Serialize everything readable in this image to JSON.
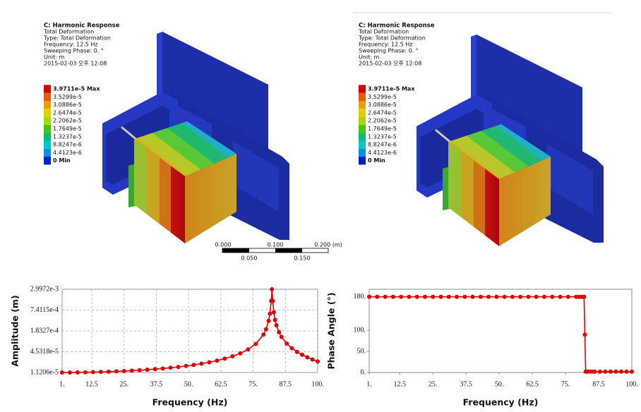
{
  "simulations": [
    {
      "title": "C: Harmonic Response",
      "lines": [
        "Total Deformation",
        "Type: Total Deformation",
        "Frequency: 12.5 Hz",
        "Sweeping Phase: 0. °",
        "Unit: m",
        "2015-02-03 오후 12:08"
      ],
      "legend": [
        "3.9711e-5 Max",
        "3.5299e-5",
        "3.0886e-5",
        "2.6474e-5",
        "2.2062e-5",
        "1.7649e-5",
        "1.3237e-5",
        "8.8247e-6",
        "4.4123e-6",
        "0 Min"
      ]
    },
    {
      "title": "C: Harmonic Response",
      "lines": [
        "Total Deformation",
        "Type: Total Deformation",
        "Frequency: 12.5 Hz",
        "Sweeping Phase: 0. °",
        "Unit: m",
        "2015-02-03 오후 12:08"
      ],
      "legend": [
        "3.9711e-5 Max",
        "3.5299e-5",
        "3.0886e-5",
        "2.6474e-5",
        "2.2062e-5",
        "1.7649e-5",
        "1.3237e-5",
        "8.8247e-6",
        "4.4123e-6",
        "0 Min"
      ]
    }
  ],
  "legend_colors": [
    "#d40000",
    "#e85a00",
    "#e8a000",
    "#e0d000",
    "#a8d800",
    "#40c800",
    "#00c070",
    "#00c8c8",
    "#0090e8",
    "#0020c8"
  ],
  "scale_bar": {
    "top_labels": [
      "0.000",
      "0.100",
      "0.200 (m)"
    ],
    "bottom_labels": [
      "0.050",
      "0.150"
    ]
  },
  "chart_data": [
    {
      "type": "line",
      "x_label": "Frequency (Hz)",
      "y_label": "Amplitude (m)",
      "color": "#e00000",
      "log_y": true,
      "grid": true,
      "markers": true,
      "x": [
        1,
        4,
        7,
        10,
        13,
        16,
        19,
        22,
        25,
        28,
        31,
        34,
        37,
        40,
        43,
        46,
        49,
        52,
        55,
        58,
        61,
        64,
        67,
        70,
        73,
        76,
        79,
        80,
        81,
        81.5,
        82,
        82.3,
        82.6,
        83,
        83.5,
        84,
        85,
        86,
        88,
        90,
        92,
        94,
        96,
        98,
        100
      ],
      "values": [
        1.1206e-05,
        1.1233e-05,
        1.1288e-05,
        1.1374e-05,
        1.149e-05,
        1.165e-05,
        1.184e-05,
        1.207e-05,
        1.235e-05,
        1.267e-05,
        1.306e-05,
        1.351e-05,
        1.405e-05,
        1.467e-05,
        1.541e-05,
        1.63e-05,
        1.736e-05,
        1.865e-05,
        2.025e-05,
        2.227e-05,
        2.487e-05,
        2.835e-05,
        3.323e-05,
        4.051e-05,
        5.256e-05,
        7.612e-05,
        0.0001426,
        0.0002034,
        0.000358,
        0.00058,
        0.00137,
        0.0029972,
        0.00137,
        0.00064,
        0.000381,
        0.000268,
        0.000168,
        0.0001219,
        7.82e-05,
        5.72e-05,
        4.49e-05,
        3.68e-05,
        3.11e-05,
        2.68e-05,
        2.35e-05
      ],
      "xlim": [
        1,
        100
      ],
      "xticks": [
        {
          "value": 1,
          "label": "1."
        },
        12.5,
        {
          "value": 25,
          "label": "25."
        },
        37.5,
        {
          "value": 50,
          "label": "50."
        },
        62.5,
        {
          "value": 75,
          "label": "75."
        },
        87.5,
        {
          "value": 100,
          "label": "100."
        }
      ],
      "ylim": [
        1.1206e-05,
        0.0029972
      ],
      "yticks": [
        {
          "value": 1.1206e-05,
          "label": "1.1206e-5"
        },
        {
          "value": 4.5318e-05,
          "label": "4.5318e-5"
        },
        {
          "value": 0.00018327,
          "label": "1.8327e-4"
        },
        {
          "value": 0.00074115,
          "label": "7.4115e-4"
        },
        {
          "value": 0.0029972,
          "label": "2.9972e-3"
        }
      ]
    },
    {
      "type": "line",
      "x_label": "Frequency (Hz)",
      "y_label": "Phase Angle (°)",
      "color": "#e00000",
      "log_y": false,
      "grid": false,
      "markers": true,
      "x": [
        1,
        4,
        7,
        10,
        13,
        16,
        19,
        22,
        25,
        28,
        31,
        34,
        37,
        40,
        43,
        46,
        49,
        52,
        55,
        58,
        61,
        64,
        67,
        70,
        73,
        76,
        79,
        80,
        81,
        81.5,
        82,
        82.3,
        82.6,
        83,
        83.5,
        84,
        85,
        86,
        88,
        90,
        92,
        94,
        96,
        98,
        100
      ],
      "values": [
        180,
        180,
        180,
        180,
        180,
        180,
        180,
        180,
        180,
        180,
        180,
        180,
        180,
        180,
        180,
        180,
        180,
        180,
        180,
        180,
        180,
        180,
        180,
        180,
        180,
        180,
        180,
        180,
        180,
        180,
        180,
        90,
        2,
        2,
        2,
        2,
        2,
        2,
        2,
        2,
        2,
        2,
        2,
        2,
        2
      ],
      "xlim": [
        1,
        100
      ],
      "xticks": [
        {
          "value": 1,
          "label": "1."
        },
        12.5,
        {
          "value": 25,
          "label": "25."
        },
        37.5,
        {
          "value": 50,
          "label": "50."
        },
        62.5,
        {
          "value": 75,
          "label": "75."
        },
        87.5,
        {
          "value": 100,
          "label": "100."
        }
      ],
      "ylim": [
        0,
        198
      ],
      "yticks": [
        {
          "value": 0,
          "label": "0."
        },
        {
          "value": 50,
          "label": "50."
        },
        {
          "value": 100,
          "label": "100."
        },
        {
          "value": 180,
          "label": "180."
        }
      ]
    }
  ]
}
